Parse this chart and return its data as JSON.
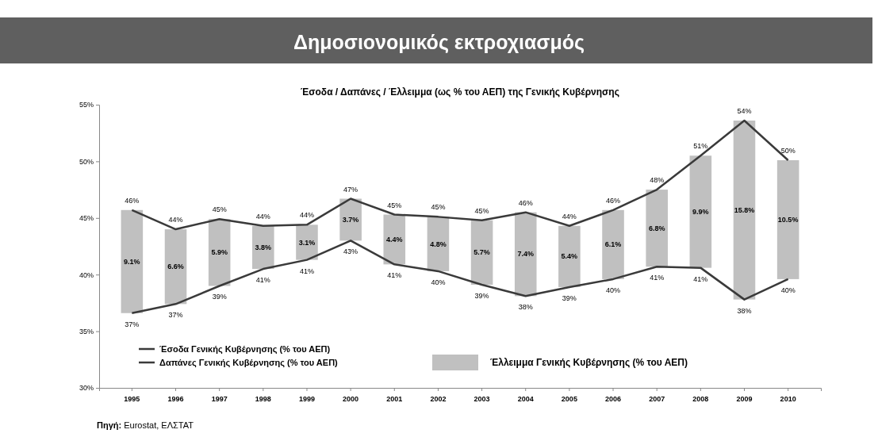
{
  "chart_data": {
    "type": "bar",
    "title": "Δημοσιονομικός εκτροχιασμός",
    "subtitle": "Έσοδα / Δαπάνες / Έλλειμμα (ως % του ΑΕΠ) της Γενικής Κυβέρνησης",
    "categories": [
      "1995",
      "1996",
      "1997",
      "1998",
      "1999",
      "2000",
      "2001",
      "2002",
      "2003",
      "2004",
      "2005",
      "2006",
      "2007",
      "2008",
      "2009",
      "2010"
    ],
    "series": [
      {
        "name": "Έσοδα Γενικής Κυβέρνησης (% του ΑΕΠ)",
        "type": "line",
        "color": "#3a3a3a",
        "values": [
          36.6,
          37.4,
          39.0,
          40.5,
          41.3,
          43.0,
          40.9,
          40.3,
          39.1,
          38.1,
          38.9,
          39.6,
          40.7,
          40.6,
          37.8,
          39.6
        ],
        "value_labels": [
          "37%",
          "37%",
          "39%",
          "41%",
          "41%",
          "43%",
          "41%",
          "40%",
          "39%",
          "38%",
          "39%",
          "40%",
          "41%",
          "41%",
          "38%",
          "40%"
        ]
      },
      {
        "name": "Δαπάνες Γενικής Κυβέρνησης (% του ΑΕΠ)",
        "type": "line",
        "color": "#3a3a3a",
        "values": [
          45.7,
          44.0,
          44.9,
          44.3,
          44.4,
          46.7,
          45.3,
          45.1,
          44.8,
          45.5,
          44.3,
          45.7,
          47.5,
          50.5,
          53.6,
          50.1
        ],
        "value_labels": [
          "46%",
          "44%",
          "45%",
          "44%",
          "44%",
          "47%",
          "45%",
          "45%",
          "45%",
          "46%",
          "44%",
          "46%",
          "48%",
          "51%",
          "54%",
          "50%"
        ]
      },
      {
        "name": "Έλλειμμα Γενικής Κυβέρνησης (% του ΑΕΠ)",
        "color": "#c0c0c0",
        "base": [
          36.6,
          37.4,
          39.0,
          40.5,
          41.3,
          43.0,
          40.9,
          40.3,
          39.1,
          38.1,
          38.9,
          39.6,
          40.7,
          40.6,
          37.8,
          39.6
        ],
        "values": [
          9.1,
          6.6,
          5.9,
          3.8,
          3.1,
          3.7,
          4.4,
          4.8,
          5.7,
          7.4,
          5.4,
          6.1,
          6.8,
          9.9,
          15.8,
          10.5
        ],
        "value_labels": [
          "9.1%",
          "6.6%",
          "5.9%",
          "3.8%",
          "3.1%",
          "3.7%",
          "4.4%",
          "4.8%",
          "5.7%",
          "7.4%",
          "5.4%",
          "6.1%",
          "6.8%",
          "9.9%",
          "15.8%",
          "10.5%"
        ]
      }
    ],
    "ylim": [
      30,
      55
    ],
    "yticks": [
      {
        "value": 30,
        "label": "30%"
      },
      {
        "value": 35,
        "label": "35%"
      },
      {
        "value": 40,
        "label": "40%"
      },
      {
        "value": 45,
        "label": "45%"
      },
      {
        "value": 50,
        "label": "50%"
      },
      {
        "value": 55,
        "label": "55%"
      }
    ],
    "grid": false,
    "legend": "bottom left",
    "annotations": [
      "Πηγή: Eurostat, ΕΛΣΤΑΤ"
    ]
  }
}
